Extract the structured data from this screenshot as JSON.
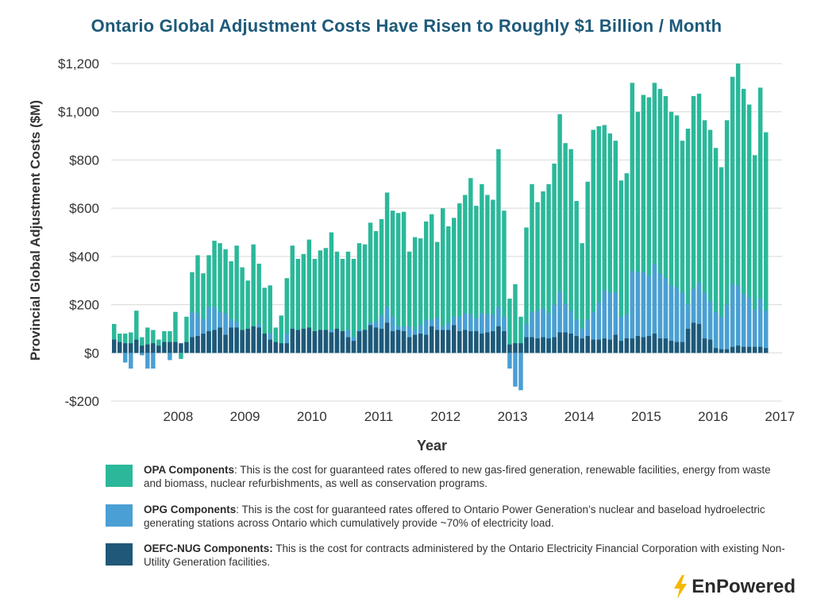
{
  "chart_data": {
    "type": "bar",
    "stacked": true,
    "title": "Ontario Global Adjustment Costs Have Risen to Roughly $1 Billion / Month",
    "xlabel": "Year",
    "ylabel": "Provincial Global Adjustment Costs ($M)",
    "ylim": [
      -200,
      1200
    ],
    "yticks": [
      -200,
      0,
      200,
      400,
      600,
      800,
      1000,
      1200
    ],
    "ytick_labels": [
      "-$200",
      "$0",
      "$200",
      "$400",
      "$600",
      "$800",
      "$1,000",
      "$1,200"
    ],
    "year_labels": [
      "2008",
      "2009",
      "2010",
      "2011",
      "2012",
      "2013",
      "2014",
      "2015",
      "2016",
      "2017"
    ],
    "grid": "horizontal",
    "series_colors": {
      "opa": "#2bb89a",
      "opg": "#4a9fd4",
      "oefc": "#1f5878"
    },
    "totals": [
      120,
      80,
      80,
      85,
      175,
      65,
      105,
      95,
      55,
      90,
      90,
      170,
      -25,
      150,
      335,
      405,
      330,
      405,
      465,
      455,
      430,
      380,
      445,
      355,
      300,
      450,
      370,
      270,
      280,
      105,
      155,
      310,
      445,
      390,
      410,
      470,
      390,
      425,
      435,
      500,
      420,
      390,
      420,
      390,
      455,
      450,
      540,
      505,
      555,
      665,
      590,
      580,
      585,
      420,
      480,
      475,
      545,
      575,
      460,
      600,
      525,
      560,
      620,
      655,
      725,
      610,
      700,
      655,
      635,
      845,
      590,
      225,
      285,
      150,
      520,
      700,
      625,
      670,
      700,
      785,
      990,
      870,
      845,
      630,
      455,
      710,
      925,
      940,
      945,
      910,
      880,
      715,
      745,
      1120,
      1000,
      1070,
      1060,
      1120,
      1095,
      1065,
      1000,
      985,
      880,
      930,
      1065,
      1075,
      965,
      925,
      850,
      770,
      965,
      1145,
      1200,
      1095,
      1030,
      820,
      1100,
      915
    ],
    "opg_components": [
      15,
      20,
      -40,
      -65,
      10,
      -10,
      -65,
      -65,
      0,
      0,
      -30,
      0,
      0,
      0,
      170,
      165,
      140,
      190,
      190,
      170,
      165,
      140,
      130,
      80,
      80,
      75,
      120,
      60,
      80,
      30,
      20,
      80,
      100,
      85,
      90,
      100,
      70,
      90,
      90,
      95,
      60,
      60,
      95,
      65,
      95,
      95,
      125,
      130,
      155,
      190,
      150,
      110,
      110,
      110,
      95,
      115,
      135,
      140,
      145,
      110,
      125,
      150,
      150,
      165,
      160,
      145,
      165,
      160,
      160,
      190,
      150,
      -65,
      -140,
      -155,
      120,
      170,
      175,
      185,
      165,
      200,
      255,
      205,
      175,
      140,
      100,
      140,
      170,
      210,
      260,
      250,
      250,
      150,
      160,
      340,
      335,
      335,
      320,
      370,
      330,
      310,
      280,
      270,
      250,
      200,
      265,
      290,
      250,
      215,
      170,
      150,
      200,
      285,
      280,
      245,
      230,
      180,
      225,
      175
    ],
    "oefc_components": [
      55,
      45,
      40,
      40,
      55,
      30,
      35,
      40,
      30,
      45,
      45,
      45,
      40,
      45,
      65,
      70,
      80,
      90,
      95,
      105,
      75,
      105,
      105,
      95,
      100,
      110,
      105,
      80,
      55,
      45,
      40,
      40,
      100,
      95,
      100,
      105,
      90,
      95,
      95,
      85,
      100,
      90,
      65,
      50,
      90,
      95,
      115,
      105,
      100,
      125,
      90,
      95,
      90,
      65,
      75,
      80,
      75,
      110,
      95,
      95,
      95,
      115,
      90,
      95,
      90,
      90,
      80,
      85,
      90,
      110,
      90,
      35,
      40,
      40,
      65,
      65,
      60,
      65,
      60,
      65,
      85,
      85,
      80,
      70,
      60,
      70,
      55,
      55,
      60,
      55,
      75,
      50,
      60,
      60,
      70,
      65,
      70,
      80,
      60,
      60,
      50,
      45,
      45,
      100,
      125,
      120,
      60,
      55,
      20,
      15,
      15,
      25,
      30,
      25,
      25,
      25,
      25,
      20
    ]
  },
  "legend": [
    {
      "key": "opa",
      "color": "#2bb89a",
      "name": "OPA Components",
      "text": ": This is the cost for guaranteed rates offered to new gas-fired generation, renewable facilities, energy from waste and biomass, nuclear refurbishments, as well as conservation programs."
    },
    {
      "key": "opg",
      "color": "#4a9fd4",
      "name": "OPG Components",
      "text": ": This is the cost for guaranteed rates offered to Ontario Power Generation’s nuclear and baseload hydroelectric generating stations across Ontario which cumulatively provide ~70% of electricity load."
    },
    {
      "key": "oefc",
      "color": "#1f5878",
      "name": "OEFC-NUG Components:",
      "text": " This is the cost for contracts administered by the Ontario Electricity Financial Corporation with existing Non-Utility Generation facilities."
    }
  ],
  "brand": {
    "name": "EnPowered",
    "icon": "lightning-bolt-icon",
    "icon_color": "#f5b800"
  }
}
